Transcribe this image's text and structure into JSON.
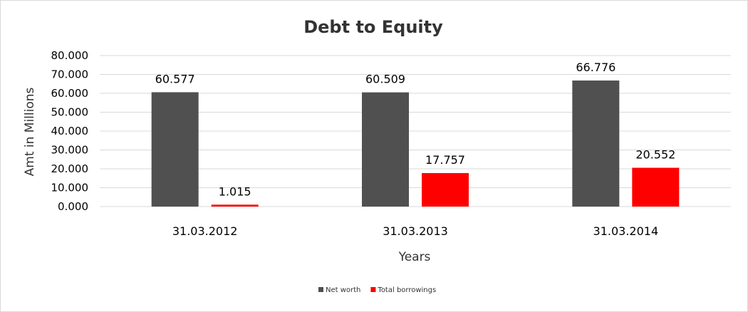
{
  "chart_data": {
    "type": "bar",
    "title": "Debt to Equity",
    "xlabel": "Years",
    "ylabel": "Amt in Millions",
    "categories": [
      "31.03.2012",
      "31.03.2013",
      "31.03.2014"
    ],
    "series": [
      {
        "name": "Net worth",
        "color": "#505050",
        "values": [
          60.577,
          60.509,
          66.776
        ],
        "labels": [
          "60.577",
          "60.509",
          "66.776"
        ]
      },
      {
        "name": "Total borrowings",
        "color": "#ff0000",
        "values": [
          1.015,
          17.757,
          20.552
        ],
        "labels": [
          "1.015",
          "17.757",
          "20.552"
        ]
      }
    ],
    "ylim": [
      0,
      80
    ],
    "yticks": [
      0,
      10,
      20,
      30,
      40,
      50,
      60,
      70,
      80
    ],
    "ytick_labels": [
      "0.000",
      "10.000",
      "20.000",
      "30.000",
      "40.000",
      "50.000",
      "60.000",
      "70.000",
      "80.000"
    ],
    "grid": true,
    "legend_position": "bottom"
  }
}
